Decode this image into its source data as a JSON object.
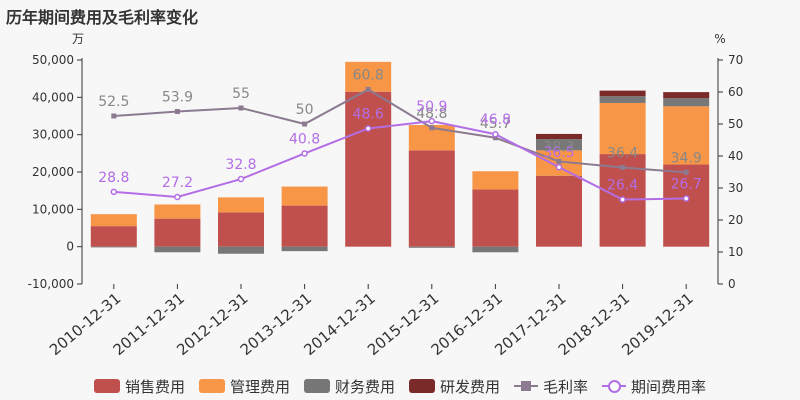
{
  "title": "历年期间费用及毛利率变化",
  "chart_data": {
    "type": "bar",
    "categories": [
      "2010-12-31",
      "2011-12-31",
      "2012-12-31",
      "2013-12-31",
      "2014-12-31",
      "2015-12-31",
      "2016-12-31",
      "2017-12-31",
      "2018-12-31",
      "2019-12-31"
    ],
    "left_axis": {
      "unit": "万",
      "min": -10000,
      "max": 50000,
      "ticks": [
        "-10,000",
        "0",
        "10,000",
        "20,000",
        "30,000",
        "40,000",
        "50,000"
      ]
    },
    "right_axis": {
      "unit": "%",
      "min": 0,
      "max": 70,
      "ticks": [
        "0",
        "10",
        "20",
        "30",
        "40",
        "50",
        "60",
        "70"
      ]
    },
    "series": [
      {
        "name": "销售费用",
        "kind": "bar",
        "color": "#c0504d",
        "values": [
          5500,
          7500,
          9200,
          11000,
          41500,
          25800,
          15300,
          19000,
          24800,
          22000
        ]
      },
      {
        "name": "管理费用",
        "kind": "bar",
        "color": "#f79646",
        "values": [
          3200,
          3800,
          4000,
          5100,
          8000,
          6800,
          4900,
          6800,
          13700,
          15600
        ]
      },
      {
        "name": "财务费用",
        "kind": "bar",
        "color": "#777777",
        "values": [
          -200,
          -1500,
          -1900,
          -1200,
          0,
          -300,
          -1500,
          3000,
          1800,
          2200
        ]
      },
      {
        "name": "研发费用",
        "kind": "bar",
        "color": "#7b2a2a",
        "values": [
          0,
          0,
          0,
          0,
          0,
          0,
          0,
          1400,
          1500,
          1600
        ]
      },
      {
        "name": "毛利率",
        "kind": "line",
        "axis": "right",
        "color": "#8c7a91",
        "values": [
          52.5,
          53.9,
          55,
          50,
          60.8,
          48.8,
          45.7,
          38.3,
          36.4,
          34.9
        ],
        "labels": [
          "52.5",
          "53.9",
          "55",
          "50",
          "60.8",
          "48.8",
          "45.7",
          "38.3",
          "36.4",
          "34.9"
        ]
      },
      {
        "name": "期间费用率",
        "kind": "line",
        "axis": "right",
        "color": "#b36ee6",
        "values": [
          28.8,
          27.2,
          32.8,
          40.8,
          48.6,
          50.9,
          46.8,
          36.5,
          26.4,
          26.7
        ],
        "labels": [
          "28.8",
          "27.2",
          "32.8",
          "40.8",
          "48.6",
          "50.9",
          "46.8",
          "36.5",
          "26.4",
          "26.7"
        ]
      }
    ],
    "legend": {
      "position": "bottom"
    }
  }
}
